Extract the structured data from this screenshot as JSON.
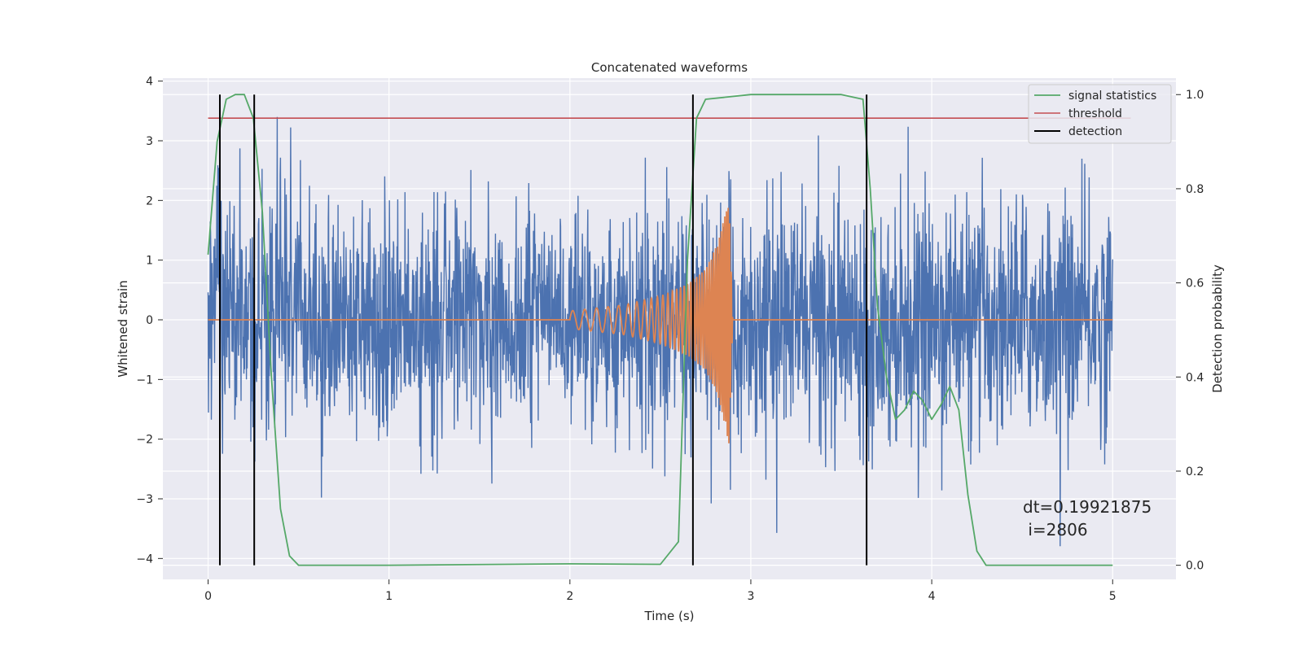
{
  "chart_data": {
    "type": "line",
    "title": "Concatenated waveforms",
    "xlabel": "Time (s)",
    "ylabel": "Whitened strain",
    "y2label": "Detection probability",
    "xlim": [
      -0.25,
      5.35
    ],
    "ylim": [
      -4.35,
      4.05
    ],
    "y2lim": [
      -0.03,
      1.035
    ],
    "x_ticks": [
      0,
      1,
      2,
      3,
      4,
      5
    ],
    "y_ticks": [
      -4,
      -3,
      -2,
      -1,
      0,
      1,
      2,
      3,
      4
    ],
    "y2_ticks": [
      0.0,
      0.2,
      0.4,
      0.6,
      0.8,
      1.0
    ],
    "x_tick_labels": [
      "0",
      "1",
      "2",
      "3",
      "4",
      "5"
    ],
    "y_tick_labels": [
      "−4",
      "−3",
      "−2",
      "−1",
      "0",
      "1",
      "2",
      "3",
      "4"
    ],
    "y2_tick_labels": [
      "0.0",
      "0.2",
      "0.4",
      "0.6",
      "0.8",
      "1.0"
    ],
    "grid": true,
    "legend_position": "top-right",
    "colors": {
      "strain": "#4c72b0",
      "chirp": "#dd8452",
      "signal_statistics": "#55a868",
      "threshold": "#c44e52",
      "detection": "#000000"
    },
    "series": [
      {
        "name": "",
        "axis": "left",
        "description_free": true,
        "x_range": [
          0,
          5
        ],
        "noise_std": 0.95,
        "noise_min": -3.9,
        "noise_max": 3.4,
        "points": 2500
      },
      {
        "name": "",
        "axis": "left",
        "x": [
          0,
          2.0,
          2.0,
          2.3,
          2.5,
          2.65,
          2.75,
          2.82,
          2.86,
          2.88,
          2.9,
          5.0
        ],
        "amplitude": [
          0,
          0,
          0.15,
          0.25,
          0.4,
          0.6,
          0.85,
          1.3,
          1.8,
          2.1,
          0,
          0
        ],
        "f_start_hz": 15,
        "f_end_hz": 120,
        "chirp_start": 2.0,
        "merger": 2.9
      },
      {
        "name": "signal statistics",
        "axis": "right",
        "x": [
          0.0,
          0.05,
          0.1,
          0.15,
          0.2,
          0.25,
          0.3,
          0.35,
          0.4,
          0.45,
          0.5,
          1.0,
          2.0,
          2.5,
          2.6,
          2.65,
          2.7,
          2.75,
          3.0,
          3.5,
          3.62,
          3.66,
          3.7,
          3.75,
          3.8,
          3.85,
          3.9,
          3.95,
          4.0,
          4.05,
          4.1,
          4.15,
          4.2,
          4.25,
          4.3,
          4.5,
          5.0
        ],
        "y": [
          0.66,
          0.9,
          0.99,
          1.0,
          1.0,
          0.95,
          0.75,
          0.4,
          0.12,
          0.02,
          0.0,
          0.0,
          0.003,
          0.002,
          0.05,
          0.65,
          0.95,
          0.99,
          1.0,
          1.0,
          0.99,
          0.8,
          0.55,
          0.4,
          0.31,
          0.33,
          0.37,
          0.35,
          0.31,
          0.34,
          0.38,
          0.33,
          0.15,
          0.03,
          0.0,
          0.0,
          0.0
        ]
      },
      {
        "name": "threshold",
        "axis": "right",
        "x": [
          0.0,
          5.1
        ],
        "y": [
          0.95,
          0.95
        ]
      },
      {
        "name": "detection",
        "axis": "right",
        "x": [
          0.065,
          0.255,
          2.68,
          3.64
        ],
        "y_from": 0.0,
        "y_to": 1.0
      }
    ],
    "annotation": [
      "dt=0.19921875",
      " i=2806"
    ]
  }
}
